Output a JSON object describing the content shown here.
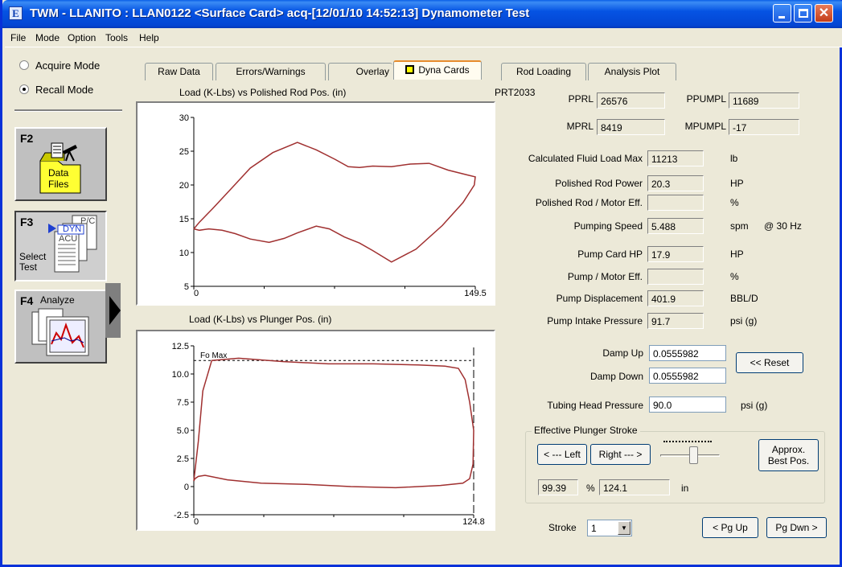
{
  "window": {
    "app_icon_glyph": "E",
    "title": "TWM  -  LLANITO : LLAN0122  <Surface Card>  acq-[12/01/10 14:52:13]  Dynamometer Test",
    "close_glyph": "✕"
  },
  "menu": {
    "file": "File",
    "mode": "Mode",
    "option": "Option",
    "tools": "Tools",
    "help": "Help"
  },
  "modes": {
    "acquire": "Acquire Mode",
    "recall": "Recall Mode",
    "selected": "recall"
  },
  "fkeys": {
    "f2": {
      "key": "F2",
      "label_line1": "Data",
      "label_line2": "Files",
      "icon": "folder-telescope-icon"
    },
    "f3": {
      "key": "F3",
      "label_line1": "Select",
      "label_line2": "Test",
      "doc_labels": [
        "P/C",
        "DYN",
        "ACU"
      ],
      "icon": "test-documents-icon"
    },
    "f4": {
      "key": "F4",
      "label": "Analyze",
      "icon": "analyze-chart-icon"
    }
  },
  "tabs": [
    {
      "label": "Raw Data",
      "active": false
    },
    {
      "label": "Errors/Warnings",
      "active": false
    },
    {
      "label": "Overlay",
      "active": false
    },
    {
      "label": "Dyna Cards",
      "active": true
    },
    {
      "label": "Rod Loading",
      "active": false
    },
    {
      "label": "Analysis Plot",
      "active": false
    }
  ],
  "chart_data": [
    {
      "type": "line",
      "title": "Load (K-Lbs) vs Polished Rod Pos. (in)",
      "xlim": [
        0,
        149.5
      ],
      "ylim": [
        5,
        30
      ],
      "x_ticks": [
        "0",
        "149.5"
      ],
      "y_ticks": [
        "30",
        "25",
        "20",
        "15",
        "10",
        "5"
      ],
      "line_color": "#a03030",
      "series": [
        {
          "x": [
            0,
            3,
            10,
            20,
            30,
            42,
            55,
            65,
            75,
            82,
            88,
            95,
            105,
            115,
            125,
            135,
            145,
            149.5,
            149,
            143,
            132,
            118,
            105,
            95,
            88,
            80,
            72,
            65,
            55,
            48,
            40,
            30,
            22,
            15,
            8,
            3,
            0
          ],
          "y": [
            13.5,
            14.5,
            16.5,
            19.5,
            22.5,
            24.8,
            26.3,
            25.2,
            23.8,
            22.7,
            22.6,
            22.8,
            22.7,
            23.1,
            23.2,
            22.2,
            21.5,
            21.2,
            20.0,
            17.4,
            14.0,
            10.5,
            8.6,
            10.3,
            11.4,
            12.3,
            13.5,
            13.9,
            12.9,
            12.1,
            11.5,
            12.0,
            12.8,
            13.3,
            13.5,
            13.3,
            13.5
          ]
        }
      ]
    },
    {
      "type": "line",
      "title": "Load (K-Lbs) vs Plunger Pos. (in)",
      "xlim": [
        0,
        124.8
      ],
      "ylim": [
        -2.5,
        12.5
      ],
      "x_ticks": [
        "0",
        "124.8"
      ],
      "y_ticks": [
        "12.5",
        "10.0",
        "7.5",
        "5.0",
        "2.5",
        "0",
        "-2.5"
      ],
      "annotation": "Fo Max",
      "fo_max": 11.2,
      "line_color": "#a03030",
      "series": [
        {
          "x": [
            0,
            2,
            4,
            8,
            20,
            40,
            60,
            80,
            100,
            112,
            118,
            121,
            123,
            124.8,
            124.5,
            123,
            120,
            110,
            90,
            70,
            50,
            30,
            15,
            5,
            2,
            0.5,
            0
          ],
          "y": [
            0.5,
            4.0,
            8.5,
            11.2,
            11.4,
            11.1,
            10.9,
            10.9,
            10.8,
            10.7,
            10.5,
            9.5,
            7.5,
            5.0,
            2.0,
            0.7,
            0.3,
            0.1,
            -0.1,
            0.0,
            0.2,
            0.3,
            0.6,
            1.0,
            0.9,
            0.7,
            0.5
          ]
        }
      ]
    }
  ],
  "prt": "PRT2033",
  "summary": {
    "pprl_label": "PPRL",
    "pprl": "26576",
    "ppumpl_label": "PPUMPL",
    "ppumpl": "11689",
    "mprl_label": "MPRL",
    "mprl": "8419",
    "mpumpl_label": "MPUMPL",
    "mpumpl": "-17"
  },
  "stats": [
    {
      "label": "Calculated Fluid Load Max",
      "value": "11213",
      "unit": "lb",
      "extra": ""
    },
    {
      "label": "Polished Rod Power",
      "value": "20.3",
      "unit": "HP",
      "extra": ""
    },
    {
      "label": "Polished Rod / Motor Eff.",
      "value": "",
      "unit": "%",
      "extra": ""
    },
    {
      "label": "Pumping Speed",
      "value": "5.488",
      "unit": "spm",
      "extra": "@ 30 Hz"
    },
    {
      "label": "Pump Card HP",
      "value": "17.9",
      "unit": "HP",
      "extra": ""
    },
    {
      "label": "Pump / Motor Eff.",
      "value": "",
      "unit": "%",
      "extra": ""
    },
    {
      "label": "Pump Displacement",
      "value": "401.9",
      "unit": "BBL/D",
      "extra": ""
    },
    {
      "label": "Pump Intake Pressure",
      "value": "91.7",
      "unit": "psi (g)",
      "extra": ""
    }
  ],
  "damp": {
    "up_label": "Damp Up",
    "up": "0.0555982",
    "down_label": "Damp Down",
    "down": "0.0555982",
    "reset": "<< Reset"
  },
  "tubing": {
    "label": "Tubing Head Pressure",
    "value": "90.0",
    "unit": "psi (g)"
  },
  "plunger": {
    "group_title": "Effective Plunger Stroke",
    "left_btn": "< --- Left",
    "right_btn": "Right --- >",
    "approx_line1": "Approx.",
    "approx_line2": "Best Pos.",
    "percent": "99.39",
    "percent_unit": "%",
    "inches": "124.1",
    "inches_unit": "in",
    "slider_fraction": 0.55
  },
  "stroke": {
    "label": "Stroke",
    "value": "1"
  },
  "paging": {
    "pg_up": "< Pg Up",
    "pg_dwn": "Pg Dwn >"
  }
}
